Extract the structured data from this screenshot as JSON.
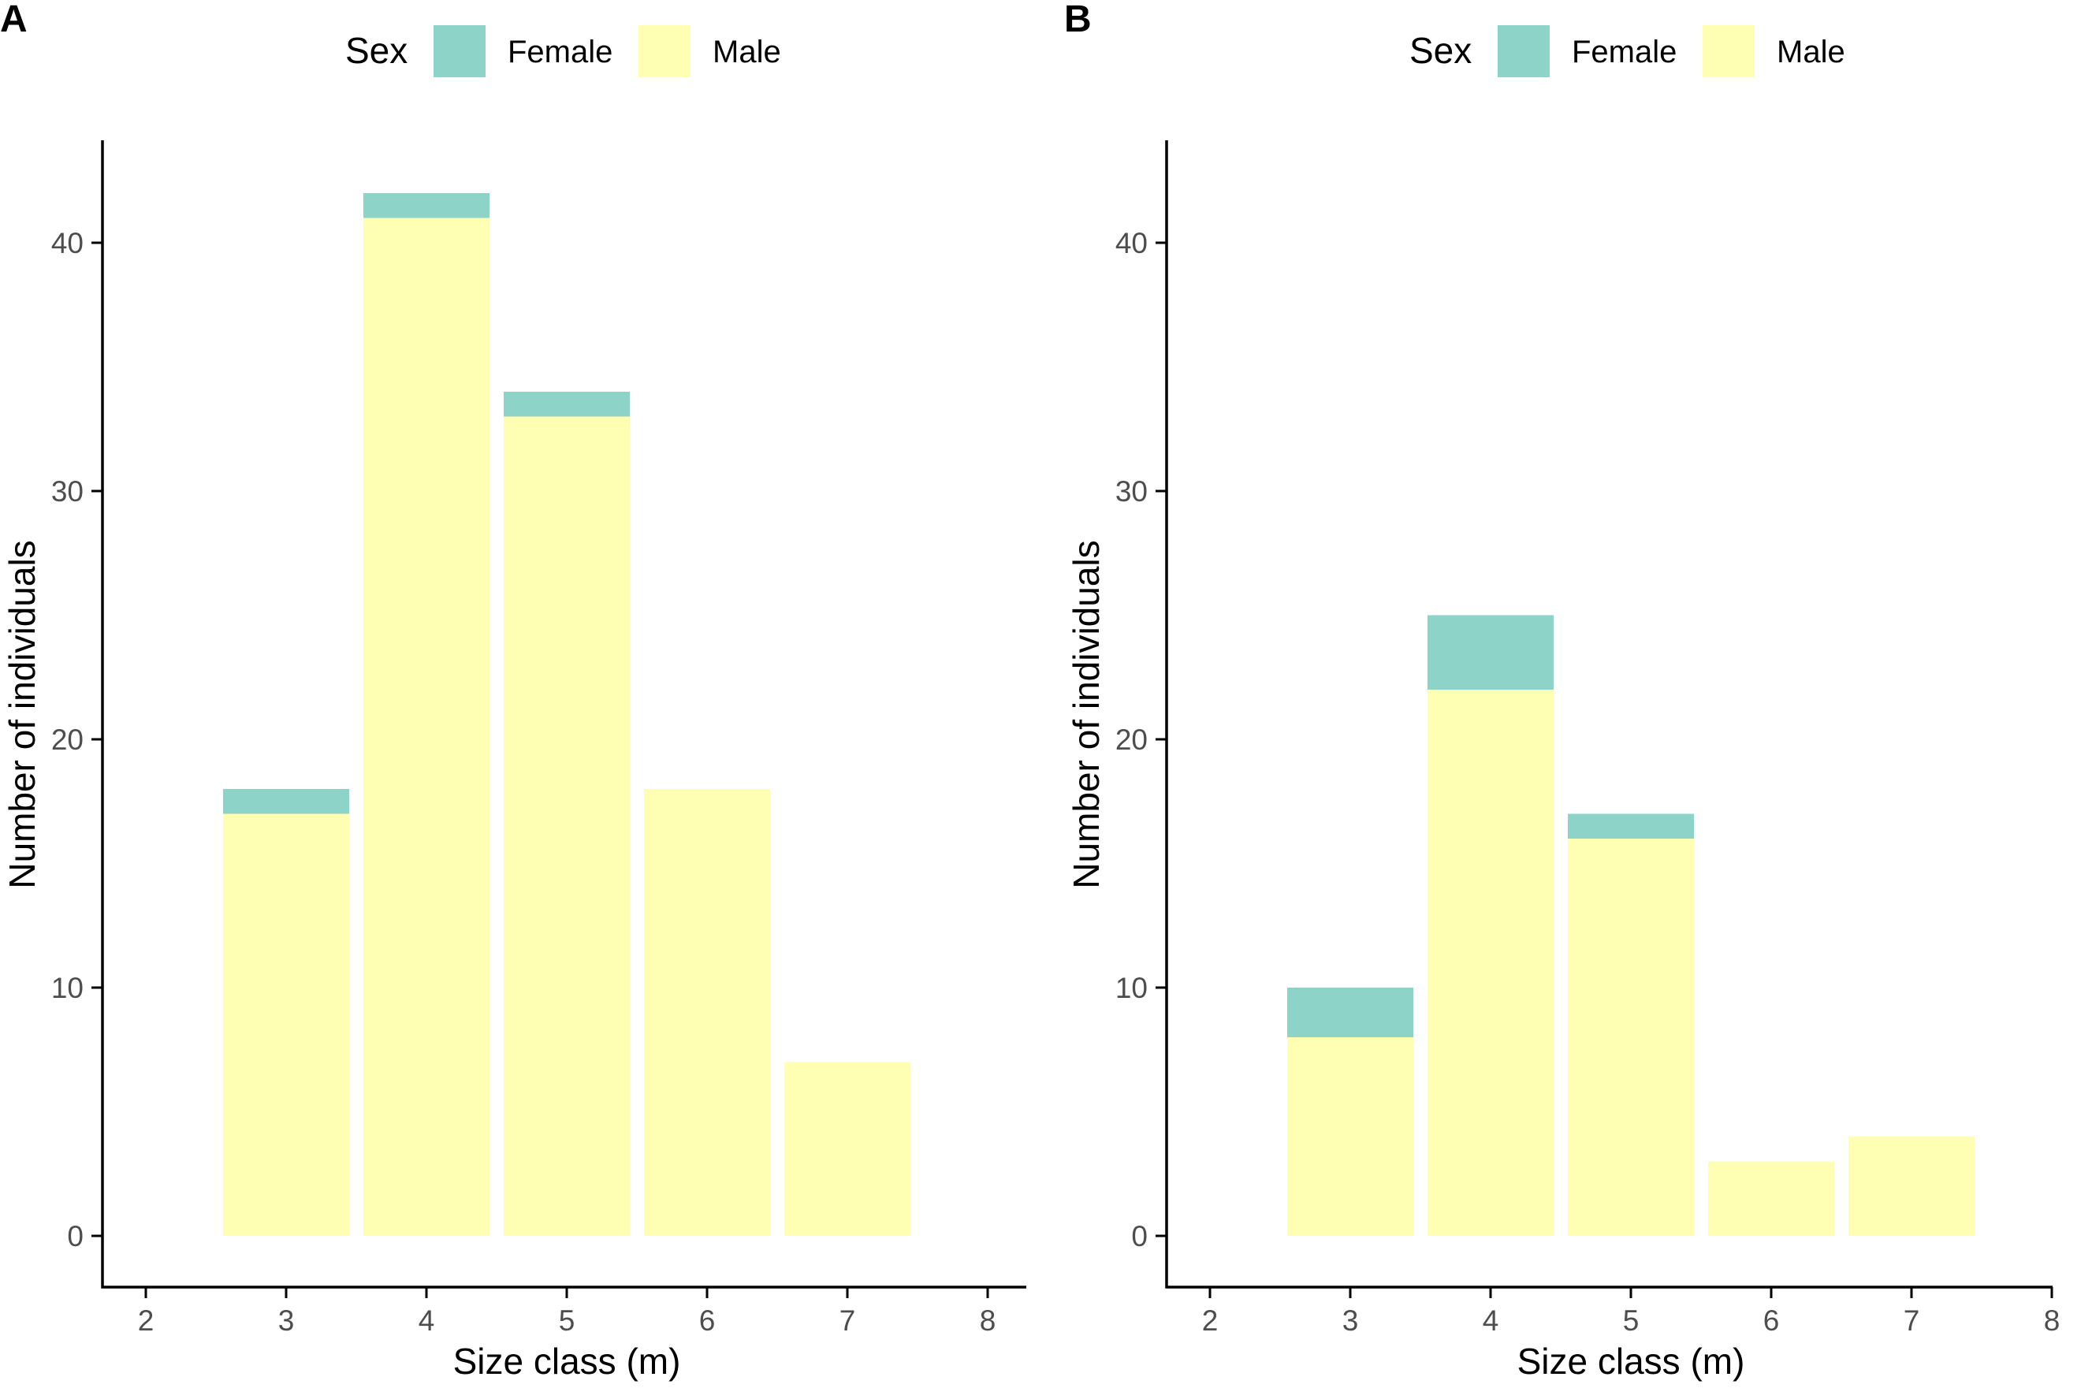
{
  "colors": {
    "female": "#8dd3c7",
    "male": "#ffffb3",
    "axis": "#000000",
    "tick_text": "#4d4d4d"
  },
  "chart_data": [
    {
      "type": "bar",
      "stacked": true,
      "panel_label": "A",
      "title": "",
      "xlabel": "Size class (m)",
      "ylabel": "Number of individuals",
      "legend_title": "Sex",
      "legend_position": "top",
      "categories": [
        3,
        4,
        5,
        6,
        7
      ],
      "series": [
        {
          "name": "Male",
          "values": [
            17,
            41,
            33,
            18,
            7
          ]
        },
        {
          "name": "Female",
          "values": [
            1,
            1,
            1,
            0,
            0
          ]
        }
      ],
      "xlim": [
        1.7,
        8.3
      ],
      "ylim": [
        -2.1,
        44.1
      ],
      "xticks": [
        2,
        3,
        4,
        5,
        6,
        7,
        8
      ],
      "yticks": [
        0,
        10,
        20,
        30,
        40
      ],
      "grid": false
    },
    {
      "type": "bar",
      "stacked": true,
      "panel_label": "B",
      "title": "",
      "xlabel": "Size class (m)",
      "ylabel": "Number of individuals",
      "legend_title": "Sex",
      "legend_position": "top",
      "categories": [
        3,
        4,
        5,
        6,
        7
      ],
      "series": [
        {
          "name": "Male",
          "values": [
            8,
            22,
            16,
            3,
            4
          ]
        },
        {
          "name": "Female",
          "values": [
            2,
            3,
            1,
            0,
            0
          ]
        }
      ],
      "xlim": [
        1.7,
        8.3
      ],
      "ylim": [
        -2.1,
        44.1
      ],
      "xticks": [
        2,
        3,
        4,
        5,
        6,
        7,
        8
      ],
      "yticks": [
        0,
        10,
        20,
        30,
        40
      ],
      "grid": false
    }
  ]
}
